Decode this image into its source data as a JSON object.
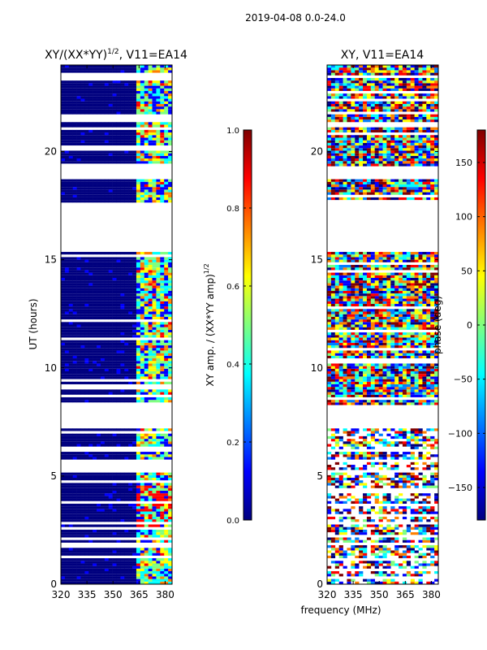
{
  "suptitle": "2019-04-08 0.0-24.0",
  "xlabel_shared": "frequency (MHz)",
  "colormap": [
    "#00007f",
    "#0000ff",
    "#007fff",
    "#00ffff",
    "#7fff7f",
    "#ffff00",
    "#ff7f00",
    "#ff0000",
    "#7f0000"
  ],
  "chart_data": [
    {
      "type": "heatmap",
      "title": "XY/(XX*YY)",
      "title_exponent": "1/2",
      "title_suffix": ", V11=EA14",
      "xlabel": "",
      "ylabel": "UT (hours)",
      "xlim": [
        320,
        384
      ],
      "ylim": [
        0,
        24
      ],
      "xticks": [
        320,
        335,
        350,
        365,
        380
      ],
      "yticks": [
        0,
        5,
        10,
        15,
        20
      ],
      "data_gaps_hours": [
        [
          7.2,
          8.2
        ],
        [
          15.3,
          17.6
        ],
        [
          18.6,
          19.2
        ]
      ],
      "active_band_mhz": [
        [
          362,
          384
        ]
      ],
      "colorbar": {
        "label": "XY amp. / (XX*YY amp)",
        "label_exponent": "1/2",
        "range": [
          0.0,
          1.0
        ],
        "ticks": [
          "0.0",
          "0.2",
          "0.4",
          "0.6",
          "0.8",
          "1.0"
        ]
      }
    },
    {
      "type": "heatmap",
      "title": "XY, V11=EA14",
      "xlabel": "frequency (MHz)",
      "ylabel": "",
      "xlim": [
        320,
        384
      ],
      "ylim": [
        0,
        24
      ],
      "xticks": [
        320,
        335,
        350,
        365,
        380
      ],
      "yticks": [
        0,
        5,
        10,
        15,
        20
      ],
      "data_gaps_hours": [
        [
          7.2,
          8.2
        ],
        [
          15.3,
          17.6
        ],
        [
          18.6,
          19.2
        ]
      ],
      "colorbar": {
        "label": "phase (deg)",
        "range": [
          -180,
          180
        ],
        "ticks": [
          "−150",
          "−100",
          "−50",
          "0",
          "50",
          "100",
          "150"
        ],
        "tick_values": [
          -150,
          -100,
          -50,
          0,
          50,
          100,
          150
        ]
      }
    }
  ]
}
